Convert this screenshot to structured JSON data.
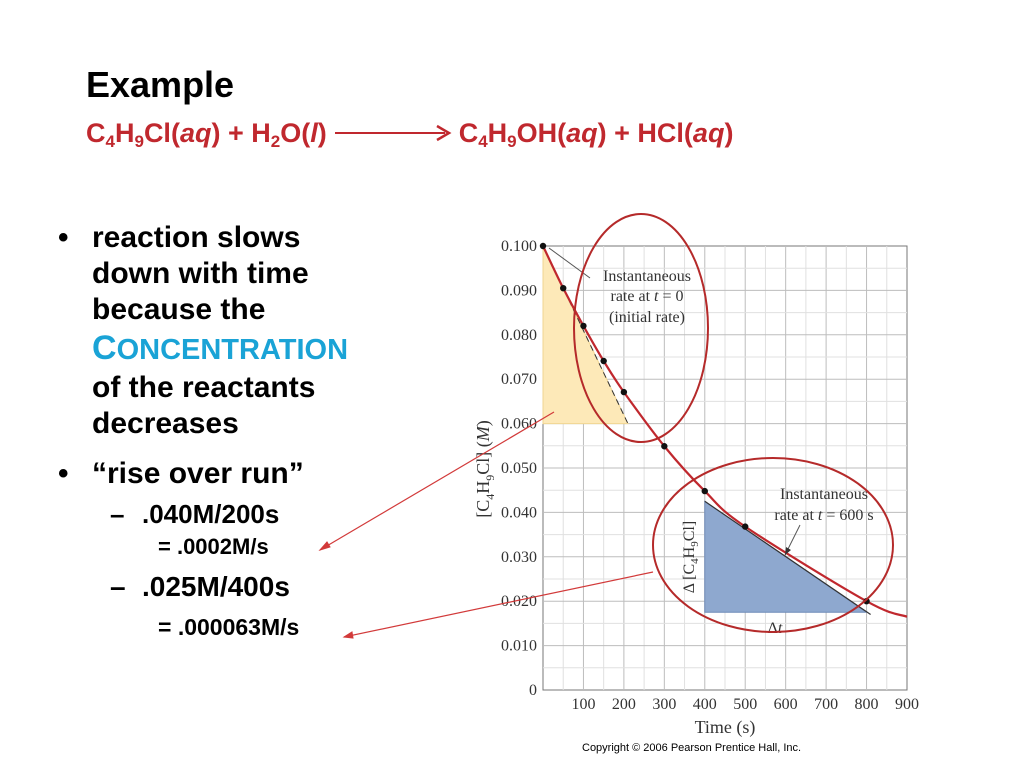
{
  "slide": {
    "title": "Example",
    "equation": {
      "c4h9cl_c": "C",
      "c4h9cl_4": "4",
      "c4h9cl_h": "H",
      "c4h9cl_9": "9",
      "c4h9cl_cl": "Cl(",
      "aq1": "aq",
      "close1": ") + H",
      "h2o_2": "2",
      "h2o_o": "O(",
      "l": "l",
      "close2": ")",
      "prod_c": "C",
      "prod_4": "4",
      "prod_h": "H",
      "prod_9": "9",
      "prod_oh": "OH(",
      "aq2": "aq",
      "close3": ") + HCl(",
      "aq3": "aq",
      "close4": ")"
    },
    "bullets": {
      "b1_line1": "reaction slows",
      "b1_line2": "down with time",
      "b1_line3": "because the",
      "concentration_first": "C",
      "concentration_rest": "ONCENTRATION",
      "b1_line5": "of the reactants",
      "b1_line6": "decreases",
      "b2": "“rise over run”",
      "sub1": ".040M/200s",
      "sub1_result": "= .0002M/s",
      "sub2": ".025M/400s",
      "sub2_result": "= .000063M/s",
      "bullet_glyph": "•",
      "dash_glyph": "–"
    },
    "copyright": "Copyright © 2006 Pearson Prentice Hall, Inc.",
    "colors": {
      "title": "#000000",
      "equation": "#c0282e",
      "concentration": "#1aa3d6",
      "curve": "#c0282e",
      "annotation_circles": "#b52a2a",
      "initial_triangle": "#fde9b8",
      "late_triangle": "#8ea8cf"
    }
  },
  "chart_data": {
    "type": "line",
    "title": "",
    "xlabel": "Time (s)",
    "ylabel": "[C4H9Cl] (M)",
    "xlim": [
      0,
      900
    ],
    "ylim": [
      0,
      0.1
    ],
    "x_ticks": [
      "100",
      "200",
      "300",
      "400",
      "500",
      "600",
      "700",
      "800",
      "900"
    ],
    "y_ticks": [
      "0",
      "0.010",
      "0.020",
      "0.030",
      "0.040",
      "0.050",
      "0.060",
      "0.070",
      "0.080",
      "0.090",
      "0.100"
    ],
    "grid": true,
    "series": [
      {
        "x": [
          0,
          50,
          100,
          150,
          200,
          300,
          400,
          500,
          800
        ],
        "y": [
          0.1,
          0.0905,
          0.082,
          0.0741,
          0.0671,
          0.0549,
          0.0448,
          0.0368,
          0.02
        ]
      }
    ],
    "curve_end": {
      "x": 900,
      "y": 0.0165
    },
    "annotations": {
      "initial_rate": "Instantaneous\nrate at t = 0\n(initial rate)",
      "rate_600": "Instantaneous\nrate at t = 600 s",
      "delta_conc": "Δ [C4H9Cl]",
      "delta_t": "Δt"
    }
  }
}
